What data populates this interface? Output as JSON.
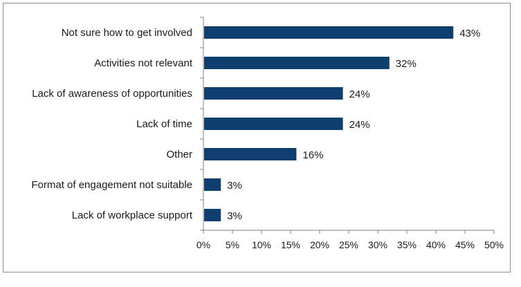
{
  "chart_data": {
    "type": "bar",
    "orientation": "horizontal",
    "categories": [
      "Not sure how to get involved",
      "Activities not relevant",
      "Lack of awareness of opportunities",
      "Lack of time",
      "Other",
      "Format of engagement not suitable",
      "Lack of workplace support"
    ],
    "values": [
      43,
      32,
      24,
      24,
      16,
      3,
      3
    ],
    "value_labels": [
      "43%",
      "32%",
      "24%",
      "24%",
      "16%",
      "3%",
      "3%"
    ],
    "title": "",
    "xlabel": "",
    "ylabel": "",
    "xlim": [
      0,
      50
    ],
    "x_ticks": [
      0,
      5,
      10,
      15,
      20,
      25,
      30,
      35,
      40,
      45,
      50
    ],
    "x_tick_labels": [
      "0%",
      "5%",
      "10%",
      "15%",
      "20%",
      "25%",
      "30%",
      "35%",
      "40%",
      "45%",
      "50%"
    ],
    "grid": false,
    "legend": "none",
    "bar_color": "#0e3f6f"
  }
}
